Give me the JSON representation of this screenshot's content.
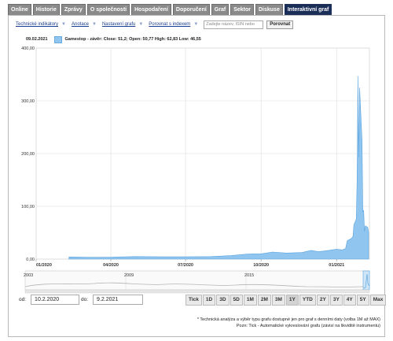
{
  "tabs": [
    "Online",
    "Historie",
    "Zprávy",
    "O společnosti",
    "Hospodaření",
    "Doporučení",
    "Graf",
    "Sektor",
    "Diskuse",
    "Interaktivní graf"
  ],
  "active_tab": "Interaktivní graf",
  "toolbar": {
    "indicators": "Technické indikátory",
    "annotations": "Anotace",
    "settings": "Nastavení grafu",
    "compare_index": "Porovnat s indexem",
    "search_placeholder": "Zadejte název, ISIN nebo",
    "compare_button": "Porovnat"
  },
  "info": {
    "date": "09.02.2021",
    "description": "Gamestop - závěr: Close: 51,2; Open: 50,77 High: 62,83 Low: 46,55"
  },
  "chart_data": {
    "type": "area",
    "title": "",
    "xlabel": "",
    "ylabel": "",
    "ylim": [
      0,
      400
    ],
    "y_ticks": [
      "0,00",
      "100,00",
      "200,00",
      "300,00",
      "400,00"
    ],
    "x_ticks": [
      "01/2020",
      "04/2020",
      "07/2020",
      "10/2020",
      "01/2021"
    ],
    "grid": true,
    "series": [
      {
        "name": "Gamestop - závěr",
        "x": [
          "2020-02-10",
          "2020-03-01",
          "2020-03-20",
          "2020-04-01",
          "2020-05-01",
          "2020-06-01",
          "2020-07-01",
          "2020-08-01",
          "2020-08-25",
          "2020-09-15",
          "2020-10-01",
          "2020-10-15",
          "2020-11-01",
          "2020-11-20",
          "2020-12-01",
          "2020-12-10",
          "2020-12-20",
          "2021-01-01",
          "2021-01-08",
          "2021-01-12",
          "2021-01-14",
          "2021-01-19",
          "2021-01-21",
          "2021-01-22",
          "2021-01-25",
          "2021-01-26",
          "2021-01-27",
          "2021-01-28",
          "2021-01-29",
          "2021-02-01",
          "2021-02-02",
          "2021-02-03",
          "2021-02-04",
          "2021-02-05",
          "2021-02-08",
          "2021-02-09"
        ],
        "values": [
          4,
          3.8,
          3.5,
          3.6,
          4.8,
          4.4,
          4.3,
          4.8,
          6.5,
          9.5,
          10,
          13.5,
          11.5,
          12.5,
          16.5,
          14,
          16,
          18.8,
          17.5,
          20,
          35,
          39,
          43,
          65,
          76,
          148,
          347,
          193,
          325,
          225,
          90,
          92,
          53,
          63,
          60,
          51.2
        ]
      }
    ]
  },
  "navigator": {
    "labels": [
      "2003",
      "2009",
      "2015"
    ]
  },
  "range": {
    "from_label": "od:",
    "from_value": "10.2.2020",
    "to_label": "do:",
    "to_value": "9.2.2021"
  },
  "periods": [
    "Tick",
    "1D",
    "3D",
    "5D",
    "1M",
    "2M",
    "3M",
    "1Y",
    "YTD",
    "2Y",
    "3Y",
    "4Y",
    "5Y",
    "Max"
  ],
  "active_period": "1Y",
  "notes": [
    "* Technická analýza a výběr typu grafu dostupné jen pro graf s denními daty (volba 1M až MAX)",
    "Pozn: Tick - Automatické vykreslování grafu (závisí na likviditě instrumentu)"
  ],
  "colors": {
    "area_fill": "#8fc5ef",
    "area_stroke": "#5aa3de",
    "active_tab": "#1a2e57"
  }
}
